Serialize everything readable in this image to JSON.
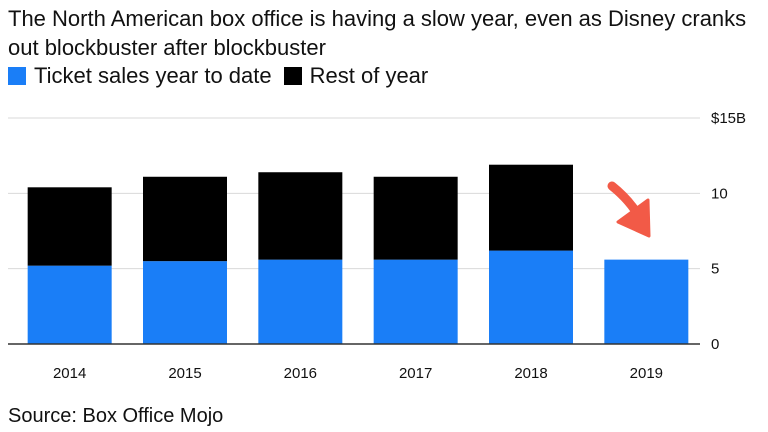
{
  "title": "The North American box office is having a slow year, even as Disney cranks out blockbuster after blockbuster",
  "source": "Source: Box Office Mojo",
  "colors": {
    "ytd": "#1a7ef7",
    "rest": "#000000",
    "arrow": "#f25a47",
    "grid": "#d9d9d9"
  },
  "chart_data": {
    "type": "bar",
    "stacked": true,
    "categories": [
      "2014",
      "2015",
      "2016",
      "2017",
      "2018",
      "2019"
    ],
    "series": [
      {
        "name": "Ticket sales year to date",
        "color": "#1a7ef7",
        "values": [
          5.2,
          5.5,
          5.6,
          5.6,
          6.2,
          5.6
        ]
      },
      {
        "name": "Rest of year",
        "color": "#000000",
        "values": [
          5.2,
          5.6,
          5.8,
          5.5,
          5.7,
          0
        ]
      }
    ],
    "ylim": [
      0,
      15
    ],
    "yticks": [
      0,
      5,
      10,
      15
    ],
    "ytick_labels": [
      "0",
      "5",
      "10",
      "$15B"
    ],
    "grid": true,
    "legend_position": "top-left",
    "annotation": "red arrow pointing at 2019 bar"
  }
}
